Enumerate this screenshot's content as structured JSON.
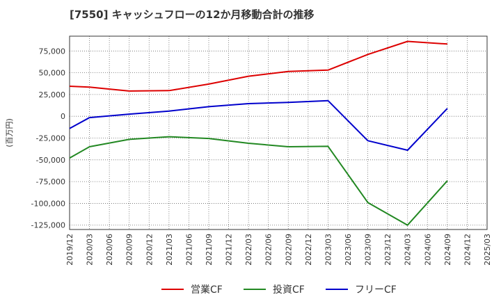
{
  "chart_data": {
    "type": "line",
    "title": "[7550]  キャッシュフローの12か月移動合計の推移",
    "xlabel": "",
    "ylabel": "(百万円)",
    "categories": [
      "2019/12",
      "2020/03",
      "2020/06",
      "2020/09",
      "2020/12",
      "2021/03",
      "2021/06",
      "2021/09",
      "2021/12",
      "2022/03",
      "2022/06",
      "2022/09",
      "2022/12",
      "2023/03",
      "2023/06",
      "2023/09",
      "2023/12",
      "2024/03",
      "2024/06",
      "2024/09",
      "2024/12",
      "2025/03"
    ],
    "yticks": [
      75000,
      50000,
      25000,
      0,
      -25000,
      -50000,
      -75000,
      -100000,
      -125000
    ],
    "ytick_labels": [
      "75,000",
      "50,000",
      "25,000",
      "0",
      "-25,000",
      "-50,000",
      "-75,000",
      "-100,000",
      "-125,000"
    ],
    "ylim": [
      -130000,
      92000
    ],
    "grid": true,
    "legend_position": "bottom",
    "series": [
      {
        "name": "営業CF",
        "color": "#dd0000",
        "points": [
          [
            "2019/12",
            34500
          ],
          [
            "2020/03",
            33500
          ],
          [
            "2020/09",
            29000
          ],
          [
            "2021/03",
            29500
          ],
          [
            "2021/09",
            37000
          ],
          [
            "2022/03",
            46000
          ],
          [
            "2022/09",
            51500
          ],
          [
            "2023/03",
            53000
          ],
          [
            "2023/09",
            71000
          ],
          [
            "2024/03",
            86000
          ],
          [
            "2024/09",
            83000
          ]
        ]
      },
      {
        "name": "投資CF",
        "color": "#228822",
        "points": [
          [
            "2019/12",
            -48000
          ],
          [
            "2020/03",
            -35000
          ],
          [
            "2020/09",
            -26500
          ],
          [
            "2021/03",
            -23500
          ],
          [
            "2021/09",
            -25500
          ],
          [
            "2022/03",
            -31000
          ],
          [
            "2022/09",
            -35000
          ],
          [
            "2023/03",
            -34500
          ],
          [
            "2023/09",
            -99000
          ],
          [
            "2024/03",
            -125000
          ],
          [
            "2024/09",
            -74000
          ]
        ]
      },
      {
        "name": "フリーCF",
        "color": "#0000cc",
        "points": [
          [
            "2019/12",
            -14000
          ],
          [
            "2020/03",
            -1500
          ],
          [
            "2020/09",
            2500
          ],
          [
            "2021/03",
            6000
          ],
          [
            "2021/09",
            11000
          ],
          [
            "2022/03",
            14500
          ],
          [
            "2022/09",
            16000
          ],
          [
            "2023/03",
            18000
          ],
          [
            "2023/09",
            -28000
          ],
          [
            "2024/03",
            -39000
          ],
          [
            "2024/09",
            9000
          ]
        ]
      }
    ]
  }
}
